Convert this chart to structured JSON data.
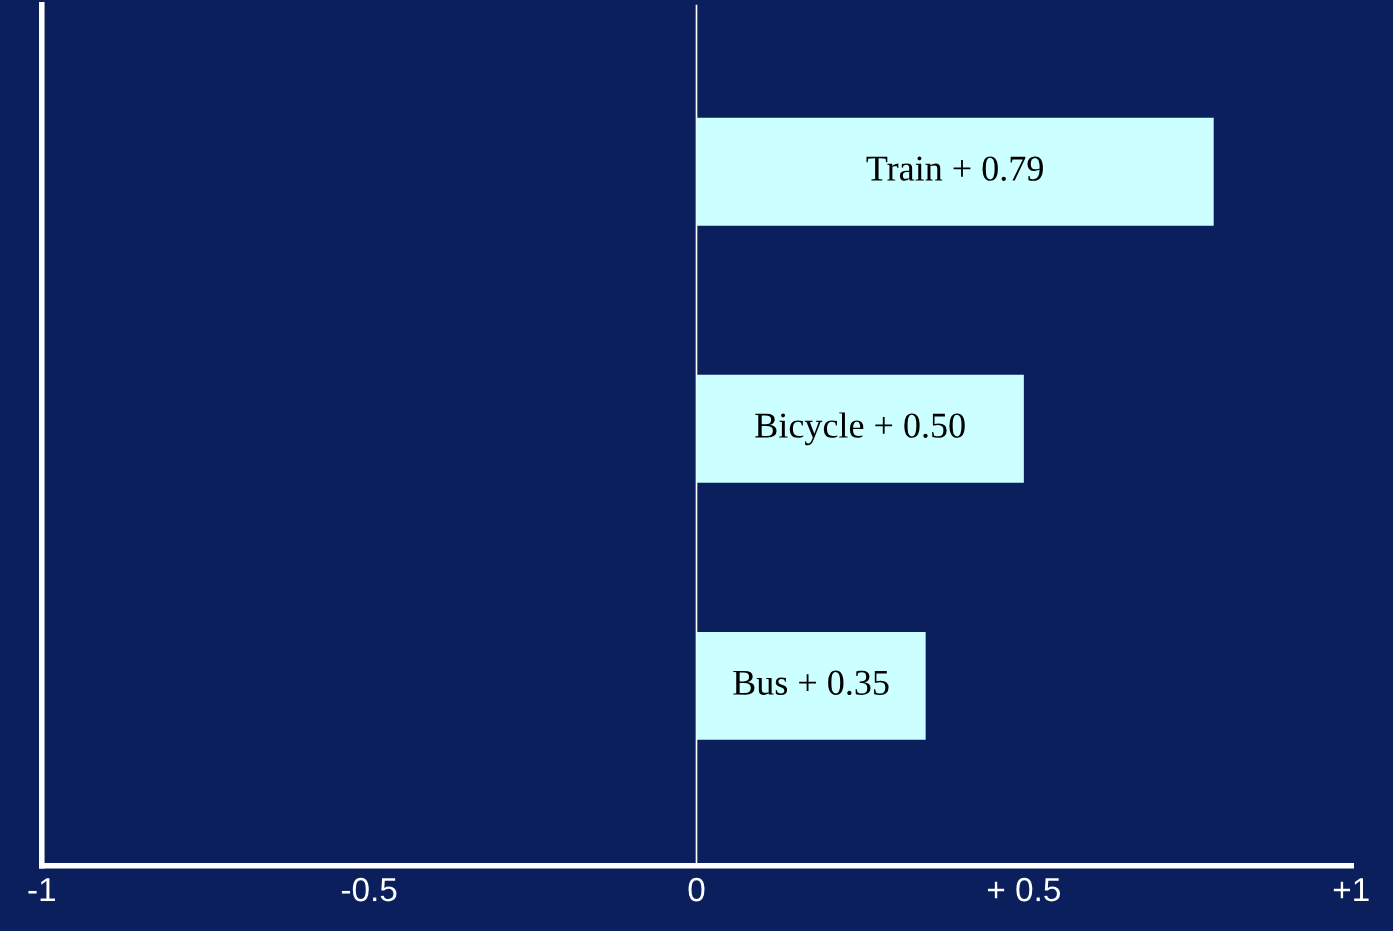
{
  "chart_data": {
    "type": "bar",
    "orientation": "horizontal",
    "categories": [
      "Train",
      "Bicycle",
      "Bus"
    ],
    "values": [
      0.79,
      0.5,
      0.35
    ],
    "value_labels": [
      "+ 0.79",
      "+ 0.50",
      "+ 0.35"
    ],
    "color": "#ccffff",
    "xlim": [
      -1,
      1
    ],
    "xticks": [
      -1,
      -0.5,
      0,
      {
        "value": 0.5,
        "label": "+ 0.5"
      },
      {
        "value": 1,
        "label": "+1"
      }
    ],
    "ref_lines": [
      {
        "axis": "x",
        "value": 0,
        "color": "#ffffff"
      }
    ],
    "tick_labels": "x",
    "grid": false,
    "legend": false
  }
}
